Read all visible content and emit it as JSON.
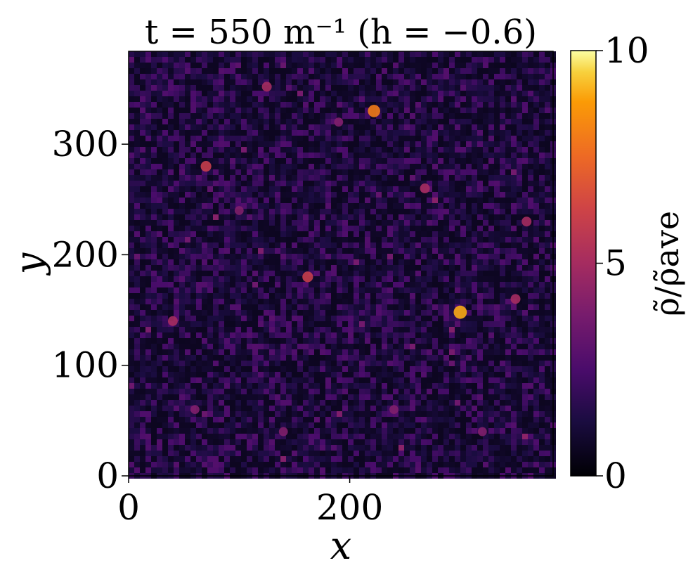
{
  "chart_data": {
    "type": "heatmap",
    "title": "t = 550 m⁻¹ (h = −0.6)",
    "xlabel": "x",
    "ylabel": "y",
    "xlim": [
      0,
      384
    ],
    "ylim": [
      0,
      384
    ],
    "x_ticks": [
      0,
      200
    ],
    "y_ticks": [
      0,
      100,
      200,
      300
    ],
    "x_tick_labels": [
      "0",
      "200"
    ],
    "y_tick_labels": [
      "0",
      "100",
      "200",
      "300"
    ],
    "colormap": "inferno",
    "colorbar": {
      "label": "ρ̃/ρ̃ave",
      "range": [
        0,
        10
      ],
      "ticks": [
        0,
        5,
        10
      ],
      "tick_labels": [
        "0",
        "5",
        "10"
      ]
    },
    "grid": false,
    "hotspots": [
      {
        "x": 300,
        "y": 148,
        "value": 9
      },
      {
        "x": 222,
        "y": 330,
        "value": 8
      },
      {
        "x": 162,
        "y": 180,
        "value": 6
      },
      {
        "x": 125,
        "y": 352,
        "value": 5
      },
      {
        "x": 70,
        "y": 280,
        "value": 6
      },
      {
        "x": 268,
        "y": 260,
        "value": 5
      },
      {
        "x": 350,
        "y": 160,
        "value": 5
      },
      {
        "x": 40,
        "y": 140,
        "value": 5
      },
      {
        "x": 190,
        "y": 320,
        "value": 4
      },
      {
        "x": 240,
        "y": 60,
        "value": 4
      },
      {
        "x": 140,
        "y": 40,
        "value": 4
      },
      {
        "x": 60,
        "y": 60,
        "value": 4
      },
      {
        "x": 320,
        "y": 40,
        "value": 4
      },
      {
        "x": 360,
        "y": 230,
        "value": 5
      },
      {
        "x": 100,
        "y": 240,
        "value": 4
      }
    ]
  }
}
